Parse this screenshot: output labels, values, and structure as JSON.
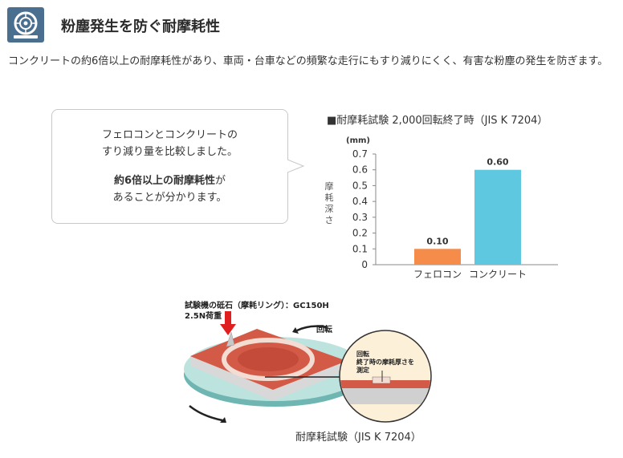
{
  "header": {
    "icon": "tire-icon",
    "title": "粉塵発生を防ぐ耐摩耗性"
  },
  "intro": {
    "text": "コンクリートの約6倍以上の耐摩耗性があり、車両・台車などの頻繁な走行にもすり減りにくく、有害な粉塵の発生を防ぎます。"
  },
  "bubble": {
    "line1": "フェロコンとコンクリートの",
    "line2": "すり減り量を比較しました。",
    "line3_bold": "約6倍以上の耐摩耗性",
    "line3_rest": "が",
    "line4": "あることが分かります。"
  },
  "chart_title": "■耐摩耗試験 2,000回転終了時（JIS K 7204）",
  "chart_data": {
    "type": "bar",
    "title": "■耐摩耗試験 2,000回転終了時（JIS K 7204）",
    "categories": [
      "フェロコン",
      "コンクリート"
    ],
    "values": [
      0.1,
      0.6
    ],
    "data_labels": [
      "0.10",
      "0.60"
    ],
    "colors": [
      "#f58c4a",
      "#5ec8e0"
    ],
    "ylabel": "摩耗深さ",
    "yunit": "(mm)",
    "ylim": [
      0,
      0.7
    ],
    "yticks": [
      "0",
      "0.1",
      "0.2",
      "0.3",
      "0.4",
      "0.5",
      "0.6",
      "0.7"
    ],
    "grid": false,
    "legend": "none"
  },
  "diagram": {
    "label_stone": "試験機の砥石（摩耗リング）：GC150H",
    "label_load": "2.5N荷重",
    "label_rotation": "回転",
    "callout_line1": "回転",
    "callout_line2": "終了時の摩耗厚さを",
    "callout_line3": "測定"
  },
  "caption": "耐摩耗試験（JIS K 7204）"
}
